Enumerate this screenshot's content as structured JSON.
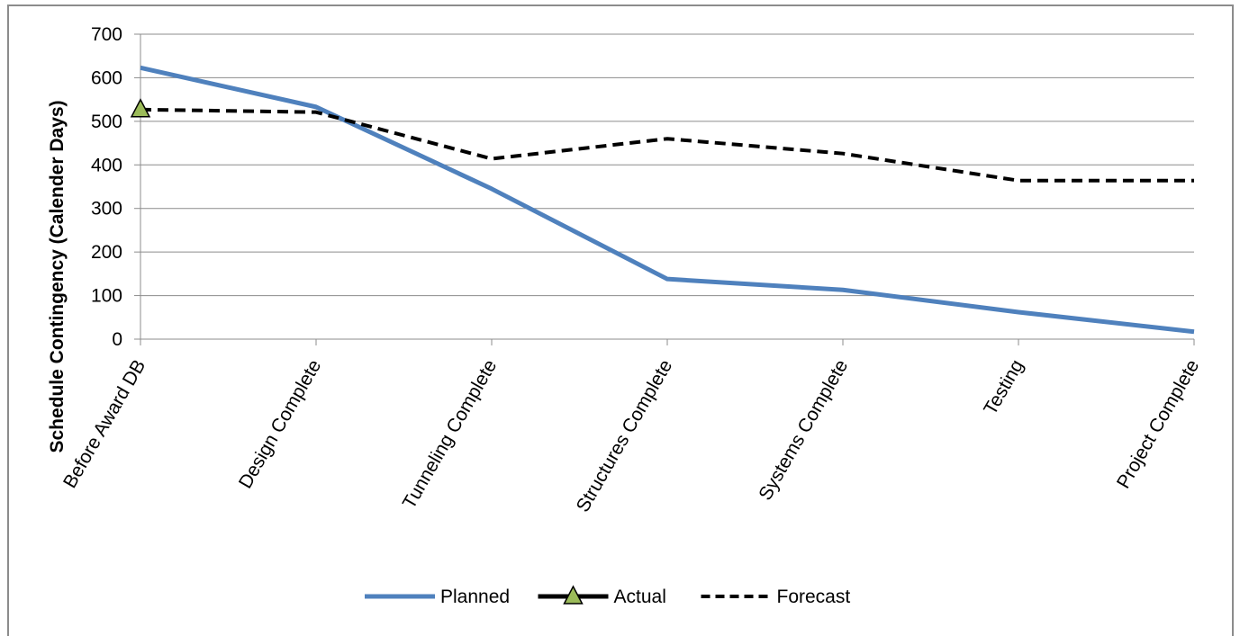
{
  "chart_data": {
    "type": "line",
    "title": "",
    "xlabel": "",
    "ylabel": "Schedule Contingency (Calender Days)",
    "ylim": [
      0,
      700
    ],
    "yticks": [
      0,
      100,
      200,
      300,
      400,
      500,
      600,
      700
    ],
    "grid": true,
    "legend_position": "bottom",
    "categories": [
      "Before Award DB",
      "Design Complete",
      "Tunneling Complete",
      "Structures Complete",
      "Systems Complete",
      "Testing",
      "Project Complete"
    ],
    "series": [
      {
        "name": "Planned",
        "values": [
          623,
          533,
          345,
          138,
          113,
          62,
          17
        ],
        "color": "#4f81bd",
        "style": "solid",
        "marker": "none"
      },
      {
        "name": "Actual",
        "values": [
          527,
          null,
          null,
          null,
          null,
          null,
          null
        ],
        "color": "#000000",
        "marker_fill": "#9bbb59",
        "style": "solid",
        "marker": "triangle"
      },
      {
        "name": "Forecast",
        "values": [
          527,
          521,
          414,
          460,
          426,
          364,
          364
        ],
        "color": "#000000",
        "style": "dashed",
        "marker": "none"
      }
    ]
  }
}
